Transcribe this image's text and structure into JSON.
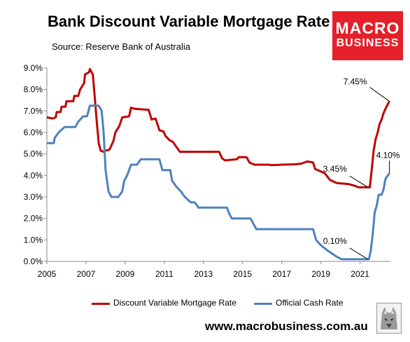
{
  "title": "Bank Discount Variable Mortgage Rate",
  "subtitle": "Source: Reserve Bank of Australia",
  "logo": {
    "line1": "MACRO",
    "line2": "BUSINESS"
  },
  "footer": {
    "url": "www.macrobusiness.com.au"
  },
  "colors": {
    "mortgage": "#c00000",
    "cash": "#4f81bd",
    "axis": "#888888",
    "logo_bg": "#e4202a"
  },
  "chart_data": {
    "type": "line",
    "title": "Bank Discount Variable Mortgage Rate",
    "xlabel": "",
    "ylabel": "",
    "xlim": [
      2005,
      2022.55
    ],
    "ylim": [
      0,
      9
    ],
    "grid": false,
    "legend_position": "bottom",
    "x_ticks": [
      "2005",
      "2007",
      "2009",
      "2011",
      "2013",
      "2015",
      "2017",
      "2019",
      "2021"
    ],
    "y_ticks": [
      "0.0%",
      "1.0%",
      "2.0%",
      "3.0%",
      "4.0%",
      "5.0%",
      "6.0%",
      "7.0%",
      "8.0%",
      "9.0%"
    ],
    "series": [
      {
        "name": "Discount Variable Mortgage Rate",
        "color": "#c00000",
        "points": [
          [
            2005.0,
            6.7
          ],
          [
            2005.3,
            6.65
          ],
          [
            2005.45,
            6.7
          ],
          [
            2005.5,
            6.95
          ],
          [
            2005.7,
            6.95
          ],
          [
            2005.75,
            7.2
          ],
          [
            2005.95,
            7.2
          ],
          [
            2006.0,
            7.45
          ],
          [
            2006.35,
            7.45
          ],
          [
            2006.4,
            7.7
          ],
          [
            2006.6,
            7.7
          ],
          [
            2006.7,
            8.0
          ],
          [
            2006.9,
            8.3
          ],
          [
            2006.95,
            8.7
          ],
          [
            2007.15,
            8.8
          ],
          [
            2007.2,
            8.95
          ],
          [
            2007.35,
            8.7
          ],
          [
            2007.45,
            7.6
          ],
          [
            2007.55,
            6.5
          ],
          [
            2007.65,
            5.5
          ],
          [
            2007.75,
            5.15
          ],
          [
            2007.9,
            5.1
          ],
          [
            2008.0,
            5.15
          ],
          [
            2008.2,
            5.2
          ],
          [
            2008.4,
            5.6
          ],
          [
            2008.5,
            6.0
          ],
          [
            2008.7,
            6.3
          ],
          [
            2008.85,
            6.7
          ],
          [
            2009.2,
            6.75
          ],
          [
            2009.3,
            7.15
          ],
          [
            2009.5,
            7.1
          ],
          [
            2010.2,
            7.05
          ],
          [
            2010.35,
            6.6
          ],
          [
            2010.55,
            6.65
          ],
          [
            2010.75,
            6.1
          ],
          [
            2010.95,
            6.05
          ],
          [
            2011.05,
            5.85
          ],
          [
            2011.25,
            5.65
          ],
          [
            2011.45,
            5.55
          ],
          [
            2011.6,
            5.35
          ],
          [
            2011.8,
            5.1
          ],
          [
            2013.8,
            5.1
          ],
          [
            2013.95,
            4.8
          ],
          [
            2014.1,
            4.7
          ],
          [
            2014.7,
            4.75
          ],
          [
            2014.8,
            4.85
          ],
          [
            2015.2,
            4.85
          ],
          [
            2015.35,
            4.6
          ],
          [
            2015.6,
            4.5
          ],
          [
            2016.0,
            4.5
          ],
          [
            2016.35,
            4.5
          ],
          [
            2016.5,
            4.48
          ],
          [
            2017.0,
            4.5
          ],
          [
            2017.7,
            4.52
          ],
          [
            2018.0,
            4.55
          ],
          [
            2018.3,
            4.65
          ],
          [
            2018.6,
            4.6
          ],
          [
            2018.7,
            4.3
          ],
          [
            2019.2,
            4.1
          ],
          [
            2019.45,
            3.8
          ],
          [
            2019.8,
            3.65
          ],
          [
            2020.4,
            3.6
          ],
          [
            2020.8,
            3.5
          ],
          [
            2020.9,
            3.45
          ],
          [
            2021.35,
            3.45
          ],
          [
            2021.5,
            3.45
          ],
          [
            2021.6,
            4.3
          ],
          [
            2021.7,
            5.2
          ],
          [
            2021.8,
            5.7
          ],
          [
            2021.9,
            6.0
          ],
          [
            2022.0,
            6.4
          ],
          [
            2022.1,
            6.6
          ],
          [
            2022.2,
            6.9
          ],
          [
            2022.35,
            7.2
          ],
          [
            2022.5,
            7.45
          ]
        ]
      },
      {
        "name": "Official Cash Rate",
        "color": "#4f81bd",
        "points": [
          [
            2005.0,
            5.5
          ],
          [
            2005.35,
            5.5
          ],
          [
            2005.4,
            5.75
          ],
          [
            2005.6,
            6.0
          ],
          [
            2005.9,
            6.25
          ],
          [
            2006.45,
            6.25
          ],
          [
            2006.6,
            6.5
          ],
          [
            2006.85,
            6.75
          ],
          [
            2007.05,
            6.75
          ],
          [
            2007.2,
            7.25
          ],
          [
            2007.65,
            7.25
          ],
          [
            2007.8,
            7.0
          ],
          [
            2007.9,
            6.0
          ],
          [
            2008.0,
            4.25
          ],
          [
            2008.15,
            3.25
          ],
          [
            2008.3,
            3.0
          ],
          [
            2008.65,
            3.0
          ],
          [
            2008.85,
            3.25
          ],
          [
            2008.95,
            3.75
          ],
          [
            2009.1,
            4.0
          ],
          [
            2009.3,
            4.5
          ],
          [
            2009.6,
            4.5
          ],
          [
            2009.8,
            4.75
          ],
          [
            2010.75,
            4.75
          ],
          [
            2010.9,
            4.25
          ],
          [
            2011.3,
            4.25
          ],
          [
            2011.4,
            3.75
          ],
          [
            2011.6,
            3.5
          ],
          [
            2011.85,
            3.25
          ],
          [
            2012.05,
            3.0
          ],
          [
            2012.35,
            2.75
          ],
          [
            2012.55,
            2.75
          ],
          [
            2012.75,
            2.5
          ],
          [
            2014.2,
            2.5
          ],
          [
            2014.3,
            2.25
          ],
          [
            2014.45,
            2.0
          ],
          [
            2015.4,
            2.0
          ],
          [
            2015.55,
            1.75
          ],
          [
            2015.7,
            1.5
          ],
          [
            2016.7,
            1.5
          ],
          [
            2017.3,
            1.5
          ],
          [
            2018.6,
            1.5
          ],
          [
            2018.75,
            1.0
          ],
          [
            2019.0,
            0.75
          ],
          [
            2019.35,
            0.5
          ],
          [
            2019.75,
            0.25
          ],
          [
            2020.05,
            0.1
          ],
          [
            2021.35,
            0.1
          ],
          [
            2021.45,
            0.1
          ],
          [
            2021.55,
            0.5
          ],
          [
            2021.65,
            1.3
          ],
          [
            2021.75,
            2.3
          ],
          [
            2021.85,
            2.6
          ],
          [
            2021.95,
            3.1
          ],
          [
            2022.1,
            3.1
          ],
          [
            2022.2,
            3.35
          ],
          [
            2022.3,
            3.85
          ],
          [
            2022.5,
            4.1
          ]
        ]
      }
    ],
    "annotations": [
      {
        "text": "7.45%",
        "series": 0,
        "x": 2022.5,
        "y": 7.45
      },
      {
        "text": "3.45%",
        "series": 0,
        "x": 2021.4,
        "y": 3.45
      },
      {
        "text": "4.10%",
        "series": 1,
        "x": 2022.5,
        "y": 4.1
      },
      {
        "text": "0.10%",
        "series": 1,
        "x": 2021.4,
        "y": 0.1
      }
    ]
  }
}
